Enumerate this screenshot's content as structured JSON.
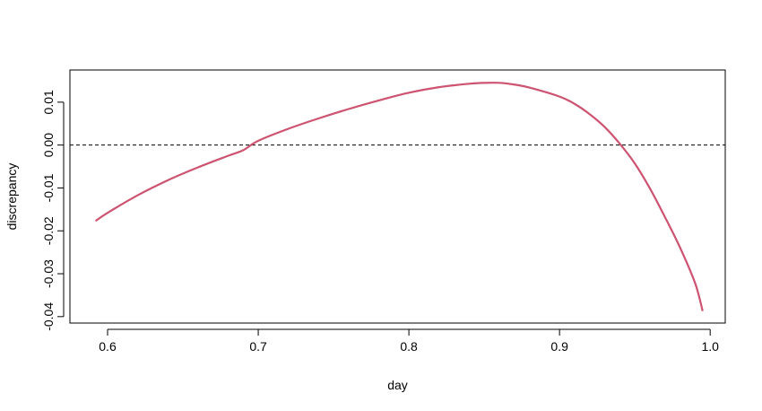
{
  "chart_data": {
    "type": "line",
    "title": "",
    "xlabel": "day",
    "ylabel": "discrepancy",
    "xlim": [
      0.575,
      1.01
    ],
    "ylim": [
      -0.0415,
      0.0175
    ],
    "x_ticks": [
      0.6,
      0.7,
      0.8,
      0.9,
      1.0
    ],
    "x_tick_labels": [
      "0.6",
      "0.7",
      "0.8",
      "0.9",
      "1.0"
    ],
    "y_ticks": [
      -0.04,
      -0.03,
      -0.02,
      -0.01,
      0.0,
      0.01
    ],
    "y_tick_labels": [
      "-0.04",
      "-0.03",
      "-0.02",
      "-0.01",
      "0.00",
      "0.01"
    ],
    "grid": false,
    "reference_line": {
      "y": 0.0,
      "style": "dashed",
      "color": "#000000"
    },
    "series": [
      {
        "color": "#cd5370",
        "x": [
          0.592,
          0.6,
          0.62,
          0.64,
          0.66,
          0.68,
          0.69,
          0.7,
          0.72,
          0.74,
          0.76,
          0.78,
          0.8,
          0.82,
          0.84,
          0.85,
          0.86,
          0.87,
          0.88,
          0.9,
          0.91,
          0.92,
          0.93,
          0.94,
          0.95,
          0.96,
          0.97,
          0.98,
          0.99,
          0.995
        ],
        "y": [
          -0.0177,
          -0.0158,
          -0.0117,
          -0.0082,
          -0.0052,
          -0.0025,
          -0.0012,
          0.001,
          0.0038,
          0.0062,
          0.0084,
          0.0104,
          0.0122,
          0.0135,
          0.0143,
          0.0145,
          0.0145,
          0.0141,
          0.0134,
          0.0113,
          0.0096,
          0.0072,
          0.0042,
          0.0003,
          -0.0043,
          -0.0101,
          -0.0168,
          -0.0239,
          -0.0322,
          -0.0387
        ]
      }
    ]
  }
}
